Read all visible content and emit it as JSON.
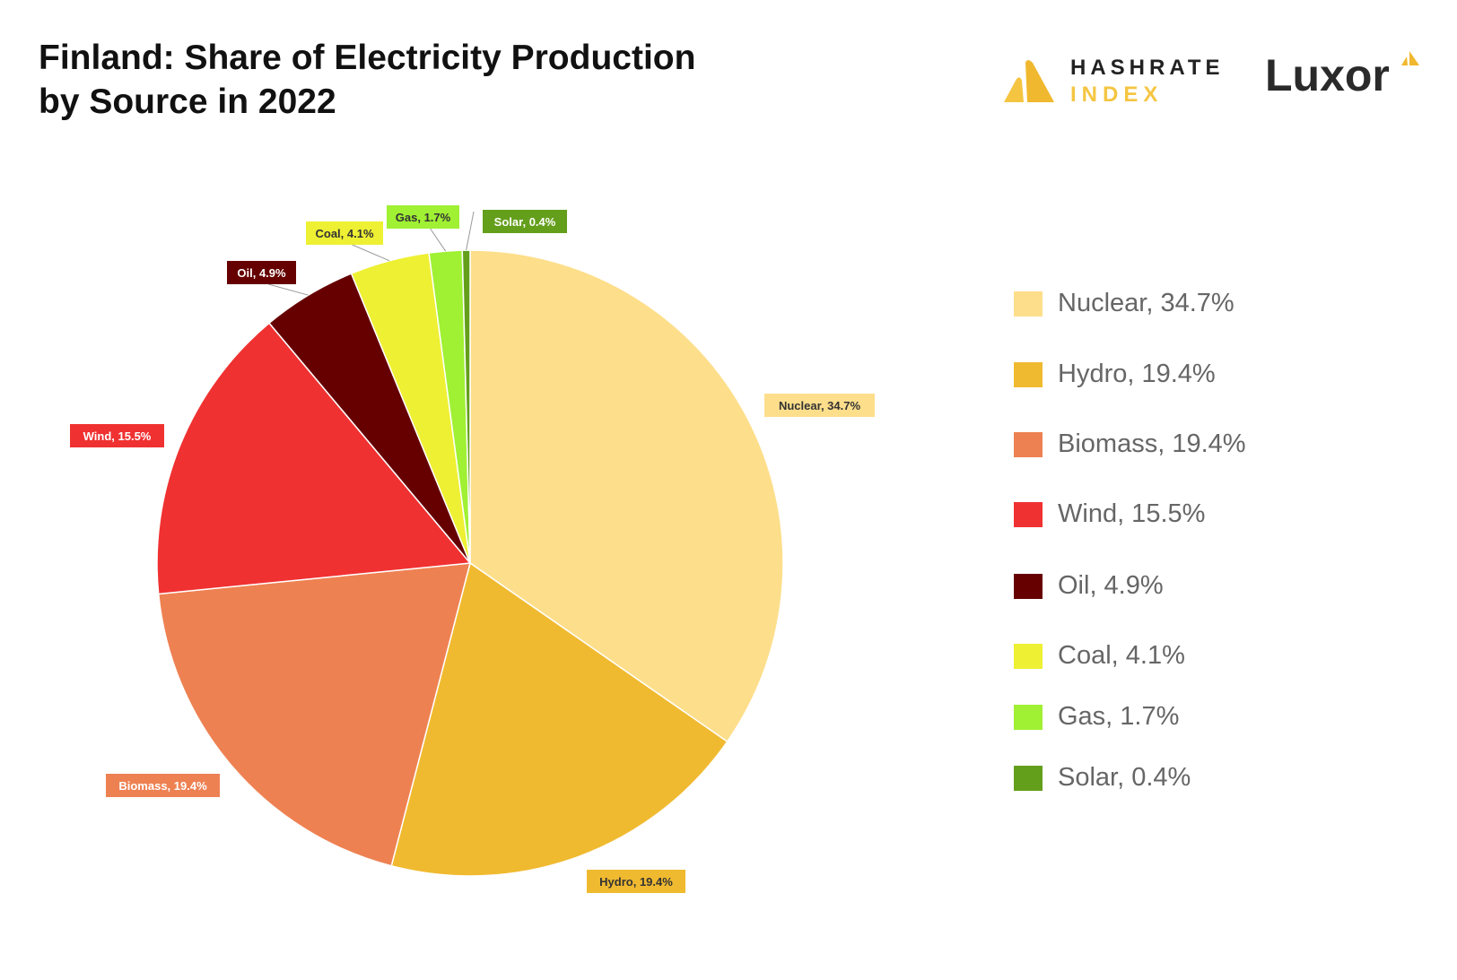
{
  "title_lines": [
    "Finland: Share of Electricity Production",
    "by Source in 2022"
  ],
  "logos": {
    "hashrate_top": "HASHRATE",
    "hashrate_bottom": "INDEX",
    "luxor": "Luxor"
  },
  "chart_data": {
    "type": "pie",
    "title": "Finland: Share of Electricity Production by Source in 2022",
    "start": "top, clockwise",
    "legend_position": "right",
    "slices": [
      {
        "name": "Nuclear",
        "value": 34.7,
        "label": "Nuclear, 34.7%",
        "color": "#FDDE8B",
        "text_color": "#333333"
      },
      {
        "name": "Hydro",
        "value": 19.4,
        "label": "Hydro, 19.4%",
        "color": "#F0BA30",
        "text_color": "#333333"
      },
      {
        "name": "Biomass",
        "value": 19.4,
        "label": "Biomass, 19.4%",
        "color": "#EE8152",
        "text_color": "#ffffff"
      },
      {
        "name": "Wind",
        "value": 15.5,
        "label": "Wind, 15.5%",
        "color": "#F03131",
        "text_color": "#ffffff"
      },
      {
        "name": "Oil",
        "value": 4.9,
        "label": "Oil, 4.9%",
        "color": "#660000",
        "text_color": "#ffffff"
      },
      {
        "name": "Coal",
        "value": 4.1,
        "label": "Coal, 4.1%",
        "color": "#EEF033",
        "text_color": "#333333"
      },
      {
        "name": "Gas",
        "value": 1.7,
        "label": "Gas, 1.7%",
        "color": "#A0F033",
        "text_color": "#333333"
      },
      {
        "name": "Solar",
        "value": 0.4,
        "label": "Solar, 0.4%",
        "color": "#649F1B",
        "text_color": "#ffffff"
      }
    ]
  }
}
